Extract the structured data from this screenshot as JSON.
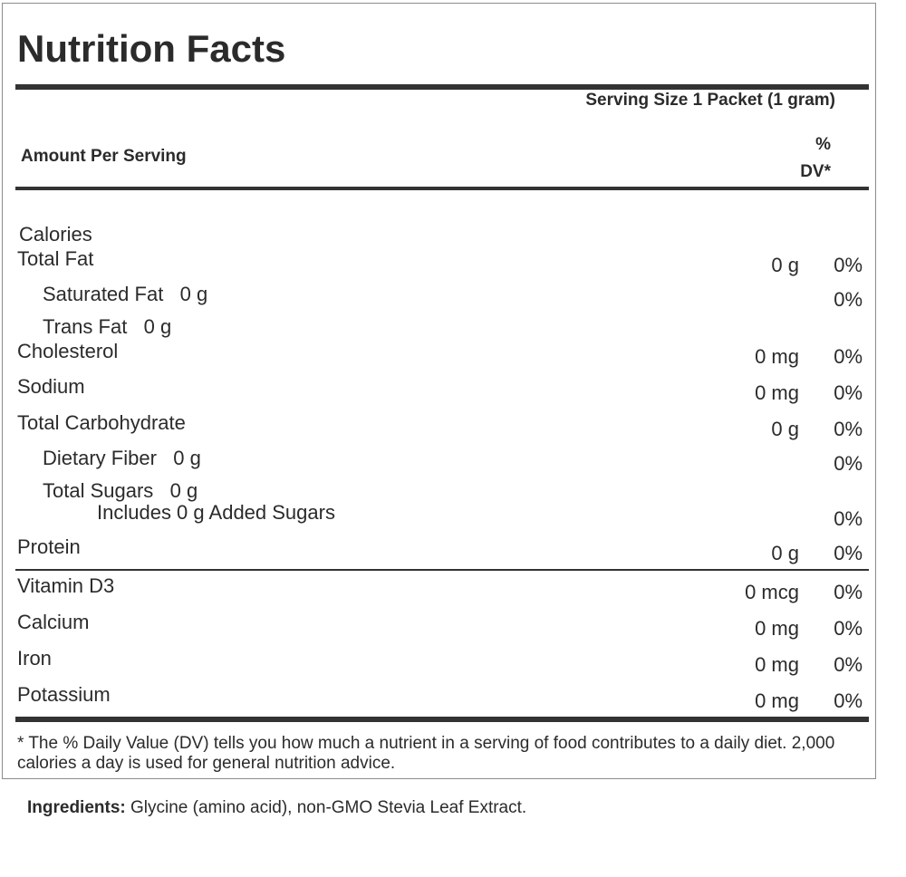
{
  "title": "Nutrition Facts",
  "serving_size": "Serving Size 1 Packet (1 gram)",
  "amount_per_serving": "Amount Per Serving",
  "dv_header_line1": "%",
  "dv_header_line2": "DV*",
  "calories_label": "Calories",
  "nutrients": [
    {
      "label": "Total Fat",
      "amount": "0 g",
      "dv": "0%"
    },
    {
      "label": "Saturated Fat   0 g",
      "amount": "",
      "dv": "0%"
    },
    {
      "label": "Trans Fat   0 g",
      "amount": "",
      "dv": ""
    },
    {
      "label": "Cholesterol",
      "amount": "0 mg",
      "dv": "0%"
    },
    {
      "label": "Sodium",
      "amount": "0 mg",
      "dv": "0%"
    },
    {
      "label": "Total Carbohydrate",
      "amount": "0 g",
      "dv": "0%"
    },
    {
      "label": "Dietary Fiber   0 g",
      "amount": "",
      "dv": "0%"
    },
    {
      "label": "Total Sugars   0 g",
      "amount": "",
      "dv": ""
    },
    {
      "label": "Includes 0 g Added Sugars",
      "amount": "",
      "dv": "0%"
    },
    {
      "label": "Protein",
      "amount": "0 g",
      "dv": "0%"
    }
  ],
  "vitamins": [
    {
      "label": "Vitamin D3",
      "amount": "0 mcg",
      "dv": "0%"
    },
    {
      "label": "Calcium",
      "amount": "0 mg",
      "dv": "0%"
    },
    {
      "label": "Iron",
      "amount": "0 mg",
      "dv": "0%"
    },
    {
      "label": "Potassium",
      "amount": "0 mg",
      "dv": "0%"
    }
  ],
  "footnote": "* The % Daily Value (DV) tells you how much a nutrient in a serving of food contributes to a daily diet. 2,000 calories a day is used for general nutrition advice.",
  "ingredients_label": "Ingredients:",
  "ingredients_text": " Glycine (amino acid), non-GMO Stevia Leaf Extract."
}
